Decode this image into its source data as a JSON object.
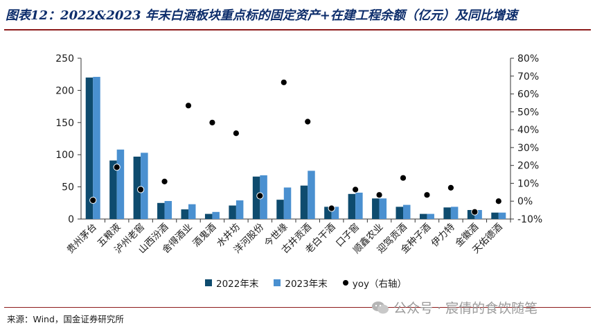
{
  "title": "图表12：2022&2023 年末白酒板块重点标的固定资产+在建工程余额（亿元）及同比增速",
  "source": "来源：Wind，国金证券研究所",
  "watermark": "公众号 · 宸倩的食饮随笔",
  "colors": {
    "title": "#0d2d6b",
    "series2022": "#0e4b6e",
    "series2023": "#4a90d0",
    "yoy": "#000000",
    "rule": "#8c1a1a"
  },
  "chart_data": {
    "type": "bar",
    "categories": [
      "贵州茅台",
      "五粮液",
      "泸州老窖",
      "山西汾酒",
      "舍得酒业",
      "酒鬼酒",
      "水井坊",
      "洋河股份",
      "今世缘",
      "古井贡酒",
      "老白干酒",
      "口子窖",
      "顺鑫农业",
      "迎驾贡酒",
      "金种子酒",
      "伊力特",
      "金徽酒",
      "天佑德酒"
    ],
    "series": [
      {
        "name": "2022年末",
        "values": [
          220,
          91,
          97,
          25,
          15,
          8,
          21,
          66,
          30,
          52,
          19,
          39,
          32,
          19,
          8,
          18,
          14,
          10
        ]
      },
      {
        "name": "2023年末",
        "values": [
          221,
          108,
          103,
          28,
          23,
          11,
          29,
          68,
          49,
          75,
          19,
          41,
          32,
          22,
          8,
          19,
          14,
          10
        ]
      }
    ],
    "yoy": {
      "name": "yoy（右轴）",
      "values": [
        0.5,
        19,
        6.5,
        11,
        53.5,
        44,
        38,
        3,
        66.5,
        44.5,
        -4,
        6.5,
        3.5,
        13,
        3.5,
        7.5,
        -6,
        0
      ]
    },
    "left_axis": {
      "min": 0,
      "max": 250,
      "ticks": [
        "0",
        "50",
        "100",
        "150",
        "200",
        "250"
      ]
    },
    "right_axis": {
      "min": -10,
      "max": 80,
      "ticks": [
        "-10%",
        "0%",
        "10%",
        "20%",
        "30%",
        "40%",
        "50%",
        "60%",
        "70%",
        "80%"
      ]
    },
    "legend_position": "bottom"
  }
}
